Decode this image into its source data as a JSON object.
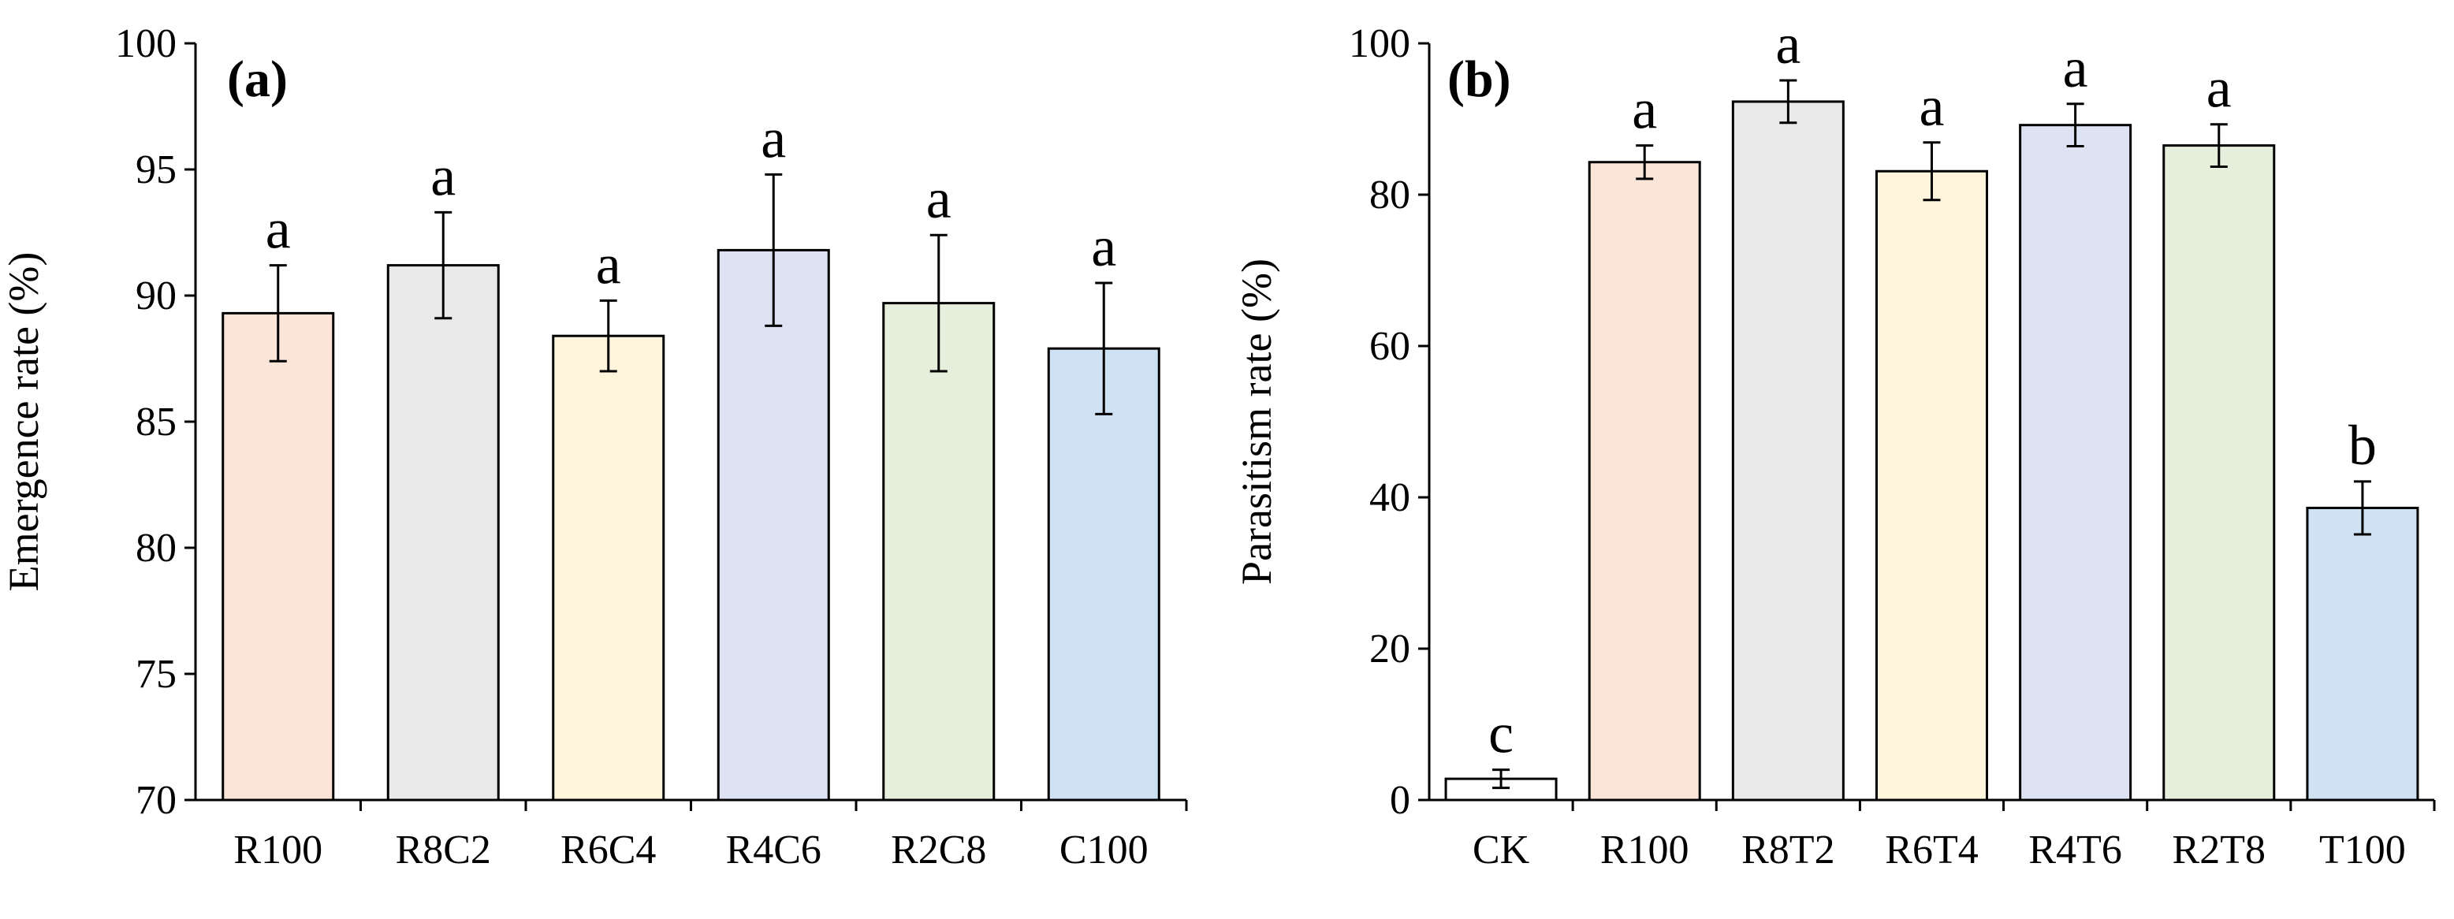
{
  "chart_data": [
    {
      "type": "bar",
      "panel_label": "(a)",
      "ylabel": "Emergence rate (%)",
      "ylim": [
        70,
        100
      ],
      "yticks": [
        70,
        75,
        80,
        85,
        90,
        95,
        100
      ],
      "categories": [
        "R100",
        "R8C2",
        "R6C4",
        "R4C6",
        "R2C8",
        "C100"
      ],
      "values": [
        89.3,
        91.2,
        88.4,
        91.8,
        89.7,
        87.9
      ],
      "errors": [
        1.9,
        2.1,
        1.4,
        3.0,
        2.7,
        2.6
      ],
      "significance": [
        "a",
        "a",
        "a",
        "a",
        "a",
        "a"
      ],
      "colors": [
        "#fbe5d8",
        "#e9e9e9",
        "#fff5dc",
        "#dde3f3",
        "#e5efdc",
        "#cfe2f4"
      ]
    },
    {
      "type": "bar",
      "panel_label": "(b)",
      "ylabel": "Parasitism rate (%)",
      "ylim": [
        0,
        100
      ],
      "yticks": [
        0,
        20,
        40,
        60,
        80,
        100
      ],
      "categories": [
        "CK",
        "R100",
        "R8T2",
        "R6T4",
        "R4T6",
        "R2T8",
        "T100"
      ],
      "values": [
        2.8,
        84.3,
        92.3,
        83.1,
        89.2,
        86.5,
        38.6
      ],
      "errors": [
        1.2,
        2.2,
        2.8,
        3.8,
        2.8,
        2.8,
        3.5
      ],
      "significance": [
        "c",
        "a",
        "a",
        "a",
        "a",
        "a",
        "b"
      ],
      "colors": [
        "#ffffff",
        "#fbe5d8",
        "#e9e9e9",
        "#fff5dc",
        "#dde3f3",
        "#e5efdc",
        "#cfe2f4"
      ]
    }
  ]
}
